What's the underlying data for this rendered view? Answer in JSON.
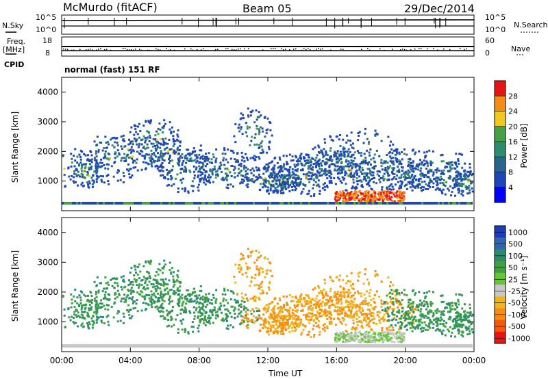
{
  "header": {
    "radar_title": "McMurdo (fitACF)",
    "beam_label": "Beam 05",
    "date_label": "29/Dec/2014"
  },
  "top_panel": {
    "left_label": "N.Sky",
    "right_label": "N.Search",
    "left_ticks": [
      "10^5",
      "10^0"
    ],
    "right_ticks": [
      "10^5",
      "10^0"
    ]
  },
  "freq_panel": {
    "left_label_1": "Freq.",
    "left_label_2": "[MHz]",
    "right_label": "Nave",
    "left_ticks": [
      "18",
      "8"
    ],
    "right_ticks": [
      "60",
      "0"
    ]
  },
  "cpid": {
    "label": "CPID",
    "mode_text": "normal (fast) 151 RF"
  },
  "chart_data": [
    {
      "type": "heatmap",
      "title": "",
      "ylabel": "Slant Range [km]",
      "xlabel": "",
      "y_ticks": [
        "1000",
        "2000",
        "3000",
        "4000"
      ],
      "ylim": [
        0,
        4500
      ],
      "colorbar_label": "Power [dB]",
      "colorbar_ticks": [
        "4",
        "8",
        "12",
        "16",
        "20",
        "24",
        "28"
      ],
      "colors": [
        "#0000ff",
        "#1e46b4",
        "#28648c",
        "#2d8c6e",
        "#46a046",
        "#f0c81e",
        "#f58c14",
        "#e61414"
      ]
    },
    {
      "type": "heatmap",
      "title": "",
      "ylabel": "Slant Range [km]",
      "xlabel": "Time UT",
      "x_ticks": [
        "00:00",
        "04:00",
        "08:00",
        "12:00",
        "16:00",
        "20:00",
        "00:00"
      ],
      "y_ticks": [
        "1000",
        "2000",
        "3000",
        "4000"
      ],
      "ylim": [
        0,
        4500
      ],
      "colorbar_label": "Velocity [m s⁻¹]",
      "colorbar_ticks": [
        "1000",
        "500",
        "100",
        "50",
        "25",
        "-25",
        "-50",
        "-100",
        "-500",
        "-1000"
      ],
      "colors": [
        "#1e3cb4",
        "#3264b4",
        "#2d8c6e",
        "#41a041",
        "#64c832",
        "#c8c8c8",
        "#f0b41e",
        "#f58c14",
        "#f55a0a",
        "#e61414"
      ]
    }
  ]
}
